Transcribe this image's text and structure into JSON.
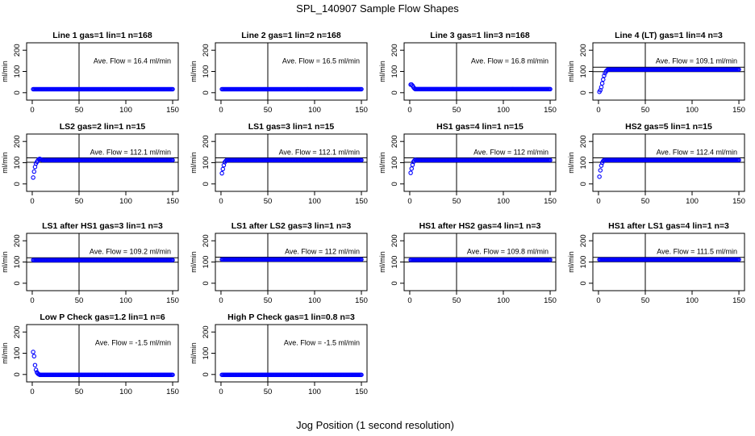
{
  "figure": {
    "title": "SPL_140907  Sample Flow Shapes",
    "xlabel": "Jog Position (1 second resolution)"
  },
  "colors": {
    "points": "#0000ff",
    "axis": "#000000",
    "background": "#ffffff"
  },
  "chart_data": [
    {
      "type": "scatter",
      "title": "Line 1 gas=1 lin=1 n=168",
      "ylabel": "ml/min",
      "annotation": "Ave. Flow =  16.4   ml/min",
      "xlim": [
        0,
        150
      ],
      "ylim": [
        0,
        200
      ],
      "xticks": [
        0,
        50,
        100,
        150
      ],
      "yticks": [
        0,
        100,
        200
      ],
      "ref_hlines": [],
      "ref_vline": 50,
      "profile": {
        "base": 16.4,
        "initial": []
      }
    },
    {
      "type": "scatter",
      "title": "Line 2 gas=1 lin=2 n=168",
      "ylabel": "ml/min",
      "annotation": "Ave. Flow =  16.5   ml/min",
      "xlim": [
        0,
        150
      ],
      "ylim": [
        0,
        200
      ],
      "xticks": [
        0,
        50,
        100,
        150
      ],
      "yticks": [
        0,
        100,
        200
      ],
      "ref_hlines": [],
      "ref_vline": 50,
      "profile": {
        "base": 16.5,
        "initial": []
      }
    },
    {
      "type": "scatter",
      "title": "Line 3 gas=1 lin=3 n=168",
      "ylabel": "ml/min",
      "annotation": "Ave. Flow =  16.8   ml/min",
      "xlim": [
        0,
        150
      ],
      "ylim": [
        0,
        200
      ],
      "xticks": [
        0,
        50,
        100,
        150
      ],
      "yticks": [
        0,
        100,
        200
      ],
      "ref_hlines": [],
      "ref_vline": 50,
      "profile": {
        "base": 16.8,
        "initial": [
          38,
          38,
          33,
          26,
          20
        ]
      }
    },
    {
      "type": "scatter",
      "title": "Line 4 (LT) gas=1 lin=4 n=3",
      "ylabel": "ml/min",
      "annotation": "Ave. Flow =  109.1   ml/min",
      "xlim": [
        0,
        150
      ],
      "ylim": [
        0,
        200
      ],
      "xticks": [
        0,
        50,
        100,
        150
      ],
      "yticks": [
        0,
        100,
        200
      ],
      "ref_hlines": [
        99,
        120
      ],
      "ref_vline": 50,
      "profile": {
        "base": 109.1,
        "initial": [
          4,
          12,
          26,
          44,
          62,
          80,
          92,
          100,
          105
        ]
      }
    },
    {
      "type": "scatter",
      "title": "LS2 gas=2 lin=1 n=15",
      "ylabel": "ml/min",
      "annotation": "Ave. Flow =  112.1   ml/min",
      "xlim": [
        0,
        150
      ],
      "ylim": [
        0,
        200
      ],
      "xticks": [
        0,
        50,
        100,
        150
      ],
      "yticks": [
        0,
        100,
        200
      ],
      "ref_hlines": [
        102,
        123
      ],
      "ref_vline": 50,
      "profile": {
        "base": 112.1,
        "initial": [
          30,
          58,
          80,
          96,
          104,
          110,
          116,
          118,
          116,
          114
        ]
      }
    },
    {
      "type": "scatter",
      "title": "LS1 gas=3 lin=1 n=15",
      "ylabel": "ml/min",
      "annotation": "Ave. Flow =  112.1   ml/min",
      "xlim": [
        0,
        150
      ],
      "ylim": [
        0,
        200
      ],
      "xticks": [
        0,
        50,
        100,
        150
      ],
      "yticks": [
        0,
        100,
        200
      ],
      "ref_hlines": [
        102,
        123
      ],
      "ref_vline": 50,
      "profile": {
        "base": 112.1,
        "initial": [
          50,
          70,
          88,
          102,
          108
        ]
      }
    },
    {
      "type": "scatter",
      "title": "HS1 gas=4 lin=1 n=15",
      "ylabel": "ml/min",
      "annotation": "Ave. Flow =  112   ml/min",
      "xlim": [
        0,
        150
      ],
      "ylim": [
        0,
        200
      ],
      "xticks": [
        0,
        50,
        100,
        150
      ],
      "yticks": [
        0,
        100,
        200
      ],
      "ref_hlines": [
        102,
        123
      ],
      "ref_vline": 50,
      "profile": {
        "base": 112,
        "initial": [
          52,
          72,
          90,
          104,
          110,
          114
        ]
      }
    },
    {
      "type": "scatter",
      "title": "HS2 gas=5 lin=1 n=15",
      "ylabel": "ml/min",
      "annotation": "Ave. Flow =  112.4   ml/min",
      "xlim": [
        0,
        150
      ],
      "ylim": [
        0,
        200
      ],
      "xticks": [
        0,
        50,
        100,
        150
      ],
      "yticks": [
        0,
        100,
        200
      ],
      "ref_hlines": [
        102,
        123
      ],
      "ref_vline": 50,
      "profile": {
        "base": 112.4,
        "initial": [
          34,
          64,
          86,
          100,
          108,
          112
        ]
      }
    },
    {
      "type": "scatter",
      "title": "LS1 after HS1 gas=3 lin=1 n=3",
      "ylabel": "ml/min",
      "annotation": "Ave. Flow =  109.2   ml/min",
      "xlim": [
        0,
        150
      ],
      "ylim": [
        0,
        200
      ],
      "xticks": [
        0,
        50,
        100,
        150
      ],
      "yticks": [
        0,
        100,
        200
      ],
      "ref_hlines": [
        99,
        120
      ],
      "ref_vline": 50,
      "profile": {
        "base": 109.2,
        "initial": []
      }
    },
    {
      "type": "scatter",
      "title": "LS1 after LS2 gas=3 lin=1 n=3",
      "ylabel": "ml/min",
      "annotation": "Ave. Flow =  112   ml/min",
      "xlim": [
        0,
        150
      ],
      "ylim": [
        0,
        200
      ],
      "xticks": [
        0,
        50,
        100,
        150
      ],
      "yticks": [
        0,
        100,
        200
      ],
      "ref_hlines": [
        102,
        123
      ],
      "ref_vline": 50,
      "profile": {
        "base": 112,
        "initial": []
      }
    },
    {
      "type": "scatter",
      "title": "HS1 after HS2 gas=4 lin=1 n=3",
      "ylabel": "ml/min",
      "annotation": "Ave. Flow =  109.8   ml/min",
      "xlim": [
        0,
        150
      ],
      "ylim": [
        0,
        200
      ],
      "xticks": [
        0,
        50,
        100,
        150
      ],
      "yticks": [
        0,
        100,
        200
      ],
      "ref_hlines": [
        100,
        121
      ],
      "ref_vline": 50,
      "profile": {
        "base": 109.8,
        "initial": []
      }
    },
    {
      "type": "scatter",
      "title": "HS1 after LS1 gas=4 lin=1 n=3",
      "ylabel": "ml/min",
      "annotation": "Ave. Flow =  111.5   ml/min",
      "xlim": [
        0,
        150
      ],
      "ylim": [
        0,
        200
      ],
      "xticks": [
        0,
        50,
        100,
        150
      ],
      "yticks": [
        0,
        100,
        200
      ],
      "ref_hlines": [
        101,
        122
      ],
      "ref_vline": 50,
      "profile": {
        "base": 111.5,
        "initial": []
      }
    },
    {
      "type": "scatter",
      "title": "Low P Check gas=1.2 lin=1 n=6",
      "ylabel": "ml/min",
      "annotation": "Ave. Flow =  -1.5   ml/min",
      "xlim": [
        0,
        150
      ],
      "ylim": [
        0,
        200
      ],
      "xticks": [
        0,
        50,
        100,
        150
      ],
      "yticks": [
        0,
        100,
        200
      ],
      "ref_hlines": [],
      "ref_vline": 50,
      "profile": {
        "base": -1.5,
        "initial": [
          106,
          86,
          44,
          22,
          10,
          4,
          1
        ]
      }
    },
    {
      "type": "scatter",
      "title": "High P Check gas=1 lin=0.8 n=3",
      "ylabel": "ml/min",
      "annotation": "Ave. Flow =  -1.5   ml/min",
      "xlim": [
        0,
        150
      ],
      "ylim": [
        0,
        200
      ],
      "xticks": [
        0,
        50,
        100,
        150
      ],
      "yticks": [
        0,
        100,
        200
      ],
      "ref_hlines": [],
      "ref_vline": 50,
      "profile": {
        "base": -1.5,
        "initial": []
      }
    }
  ]
}
